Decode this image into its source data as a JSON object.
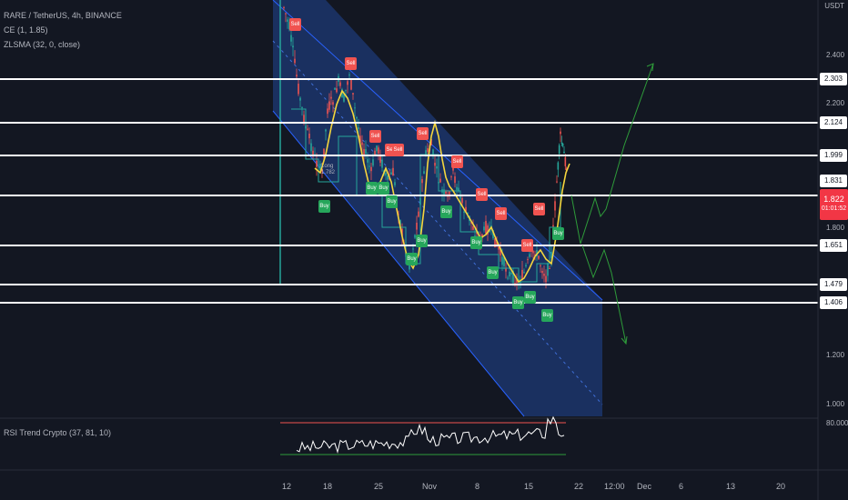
{
  "legend": {
    "symbol": "RARE / TetherUS, 4h, BINANCE",
    "ce": "CE (1, 1.85)",
    "zlsma": "ZLSMA (32, 0, close)"
  },
  "indicator": {
    "label": "RSI Trend Crypto (37, 81, 10)",
    "level": "80.000"
  },
  "price_axis": {
    "unit": "USDT",
    "ticks": [
      "2.400",
      "2.200",
      "1.800",
      "1.200",
      "1.000"
    ],
    "current": {
      "price": "1.822",
      "countdown": "01:01:52"
    },
    "level_labels": [
      {
        "id": "l2303",
        "text": "2.303"
      },
      {
        "id": "l2124",
        "text": "2.124"
      },
      {
        "id": "l1999",
        "text": "1.999"
      },
      {
        "id": "l1831",
        "text": "1.831"
      },
      {
        "id": "l1651",
        "text": "1.651"
      },
      {
        "id": "l1479",
        "text": "1.479"
      },
      {
        "id": "l1406",
        "text": "1.406"
      }
    ]
  },
  "time_axis": [
    "12",
    "18",
    "25",
    "Nov",
    "8",
    "15",
    "22",
    "12:00",
    "Dec",
    "6",
    "13",
    "20"
  ],
  "signals": [
    {
      "id": "s1",
      "text": "Sell",
      "type": "sell"
    },
    {
      "id": "s2",
      "text": "Sell",
      "type": "sell"
    },
    {
      "id": "s3",
      "text": "Sell",
      "type": "sell"
    },
    {
      "id": "s4",
      "text": "Sell",
      "type": "sell"
    },
    {
      "id": "s5",
      "text": "Sell",
      "type": "sell"
    },
    {
      "id": "s6",
      "text": "Sell",
      "type": "sell"
    },
    {
      "id": "s7",
      "text": "Sell",
      "type": "sell"
    },
    {
      "id": "s8",
      "text": "Sell",
      "type": "sell"
    },
    {
      "id": "s9",
      "text": "Sell",
      "type": "sell"
    },
    {
      "id": "s10",
      "text": "Sell",
      "type": "sell"
    },
    {
      "id": "s11",
      "text": "Sell",
      "type": "sell"
    },
    {
      "id": "b1",
      "text": "Buy",
      "type": "buy"
    },
    {
      "id": "b2",
      "text": "Buy",
      "type": "buy"
    },
    {
      "id": "b3",
      "text": "Buy",
      "type": "buy"
    },
    {
      "id": "b4",
      "text": "Buy",
      "type": "buy"
    },
    {
      "id": "b5",
      "text": "Buy",
      "type": "buy"
    },
    {
      "id": "b6",
      "text": "Buy",
      "type": "buy"
    },
    {
      "id": "b7",
      "text": "Buy",
      "type": "buy"
    },
    {
      "id": "b8",
      "text": "Buy",
      "type": "buy"
    },
    {
      "id": "b9",
      "text": "Buy",
      "type": "buy"
    },
    {
      "id": "b10",
      "text": "Buy",
      "type": "buy"
    },
    {
      "id": "b11",
      "text": "Buy",
      "type": "buy"
    },
    {
      "id": "b12",
      "text": "Buy",
      "type": "buy"
    },
    {
      "id": "b13",
      "text": "Buy",
      "type": "buy"
    }
  ],
  "annotation": {
    "line1": "Long",
    "line2": "1.782"
  },
  "colors": {
    "background": "#131722",
    "channel_fill": "#1e3a75",
    "level_line": "#ffffff",
    "zlsma": "#f5d63d",
    "projection": "#2e9b3a",
    "sell": "#f05350",
    "buy": "#26a65b",
    "current_price": "#f23645"
  }
}
